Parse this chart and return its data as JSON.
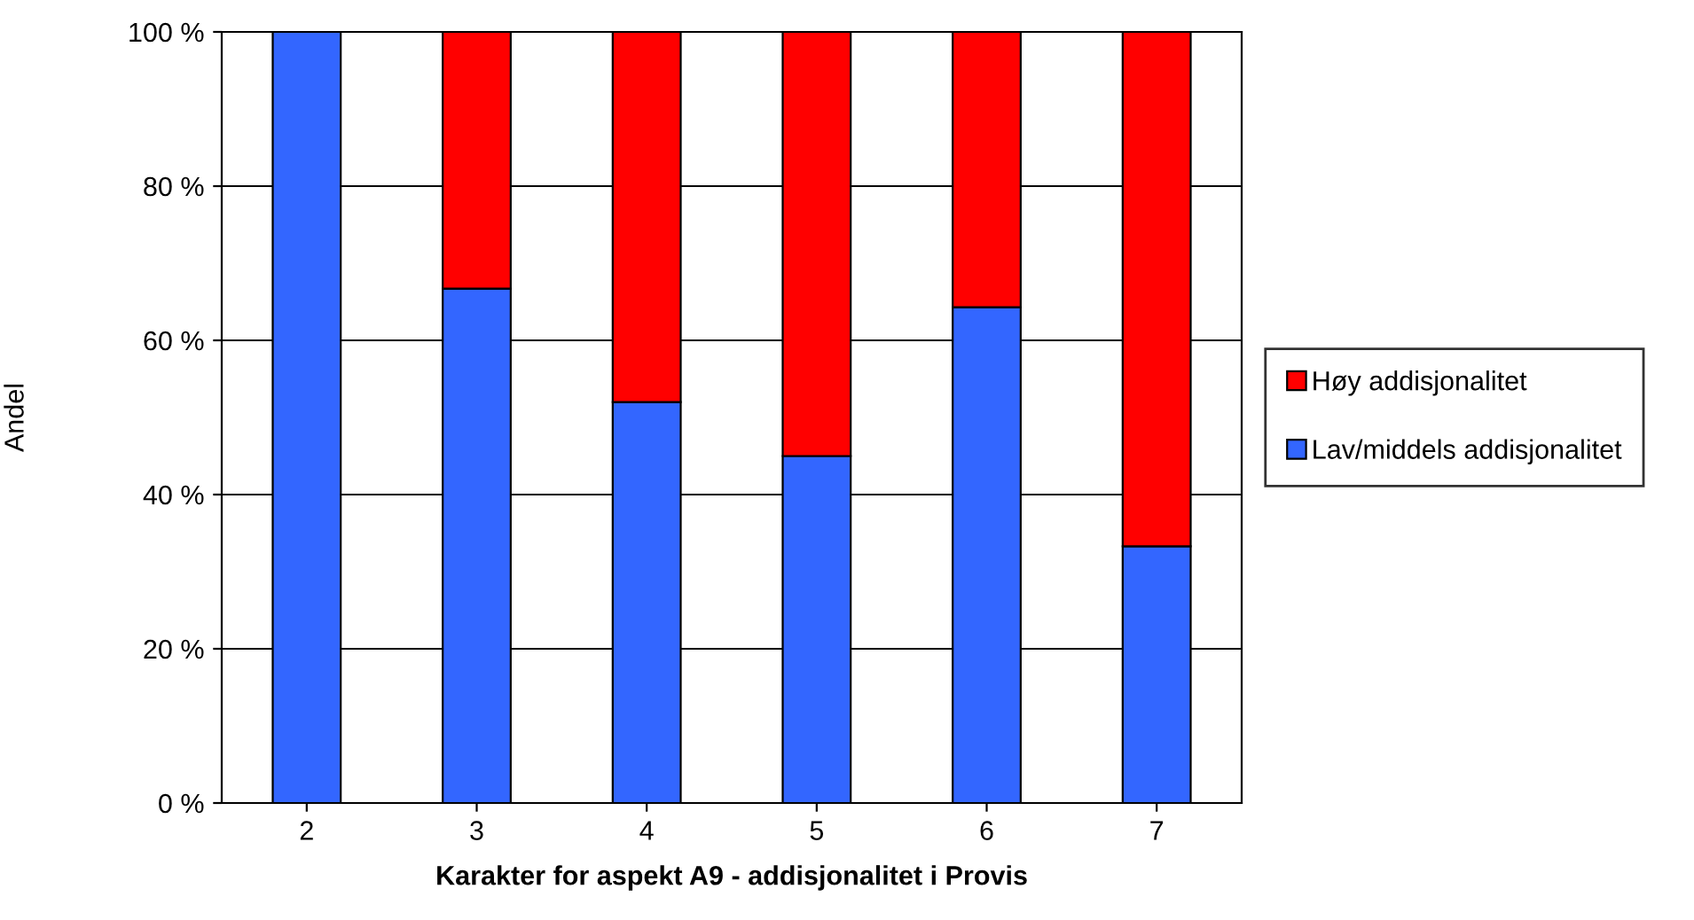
{
  "chart_data": {
    "type": "bar",
    "stacked": true,
    "xlabel": "Karakter for aspekt A9 - addisjonalitet i Provis",
    "ylabel": "Andel",
    "categories": [
      "2",
      "3",
      "4",
      "5",
      "6",
      "7"
    ],
    "series": [
      {
        "name": "Lav/middels addisjonalitet",
        "color": "#3366ff",
        "values": [
          100,
          66.7,
          52,
          45,
          64.3,
          33.3
        ]
      },
      {
        "name": "Høy addisjonalitet",
        "color": "#ff0000",
        "values": [
          null,
          33.3,
          48,
          55,
          35.7,
          66.7
        ]
      }
    ],
    "ylim": [
      0,
      100
    ],
    "yticks": [
      {
        "value": 0,
        "label": "0 %"
      },
      {
        "value": 20,
        "label": "20 %"
      },
      {
        "value": 40,
        "label": "40 %"
      },
      {
        "value": 60,
        "label": "60 %"
      },
      {
        "value": 80,
        "label": "80 %"
      },
      {
        "value": 100,
        "label": "100 %"
      }
    ],
    "grid": "y",
    "legend": "right"
  }
}
